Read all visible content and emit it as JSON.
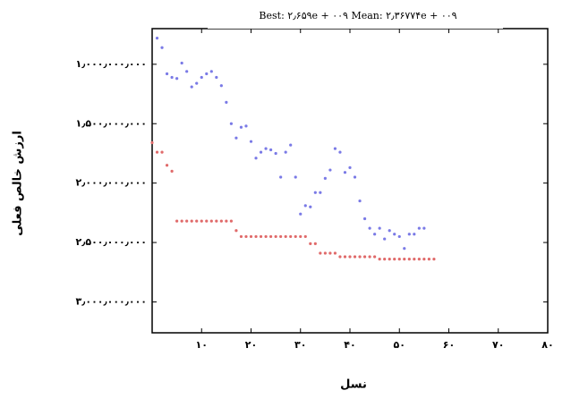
{
  "chart_data": {
    "type": "scatter",
    "title": "Best: ۲٫۶۵۹e + ۰۰۹ Mean: ۲٫۳۶۷۷۴e + ۰۰۹",
    "x_label": "نسل",
    "y_label": "ارزش خالص فعلی",
    "xlim": [
      0,
      80
    ],
    "ylim": [
      700000000,
      3260000000
    ],
    "y_inverted": true,
    "xticks": [
      {
        "value": 10,
        "label": "۱۰"
      },
      {
        "value": 20,
        "label": "۲۰"
      },
      {
        "value": 30,
        "label": "۳۰"
      },
      {
        "value": 40,
        "label": "۴۰"
      },
      {
        "value": 50,
        "label": "۵۰"
      },
      {
        "value": 60,
        "label": "۶۰"
      },
      {
        "value": 70,
        "label": "۷۰"
      },
      {
        "value": 80,
        "label": "۸۰"
      }
    ],
    "yticks": [
      {
        "value": 1000000000,
        "label": "۱٫۰۰۰٫۰۰۰٫۰۰۰"
      },
      {
        "value": 1500000000,
        "label": "۱٫۵۰۰٫۰۰۰٫۰۰۰"
      },
      {
        "value": 2000000000,
        "label": "۲٫۰۰۰٫۰۰۰٫۰۰۰"
      },
      {
        "value": 2500000000,
        "label": "۲٫۵۰۰٫۰۰۰٫۰۰۰"
      },
      {
        "value": 3000000000,
        "label": "۳٫۰۰۰٫۰۰۰٫۰۰۰"
      }
    ],
    "grid": false,
    "series": [
      {
        "color": "#7a7ae6",
        "x": [
          1,
          2,
          3,
          4,
          5,
          6,
          7,
          8,
          9,
          10,
          11,
          12,
          13,
          14,
          15,
          16,
          17,
          18,
          19,
          20,
          21,
          22,
          23,
          24,
          25,
          26,
          27,
          28,
          29,
          30,
          31,
          32,
          33,
          34,
          35,
          36,
          37,
          38,
          39,
          40,
          41,
          42,
          43,
          44,
          45,
          46,
          47,
          48,
          49,
          50,
          51,
          52,
          53,
          54,
          55
        ],
        "values": [
          780000000,
          860000000,
          1080000000,
          1110000000,
          1120000000,
          990000000,
          1060000000,
          1190000000,
          1160000000,
          1110000000,
          1080000000,
          1060000000,
          1110000000,
          1180000000,
          1320000000,
          1500000000,
          1620000000,
          1530000000,
          1520000000,
          1650000000,
          1790000000,
          1740000000,
          1710000000,
          1720000000,
          1750000000,
          1950000000,
          1740000000,
          1680000000,
          1950000000,
          2260000000,
          2190000000,
          2200000000,
          2080000000,
          2080000000,
          1960000000,
          1890000000,
          1710000000,
          1740000000,
          1910000000,
          1870000000,
          1950000000,
          2150000000,
          2300000000,
          2380000000,
          2430000000,
          2380000000,
          2470000000,
          2400000000,
          2430000000,
          2450000000,
          2550000000,
          2430000000,
          2430000000,
          2380000000,
          2380000000
        ]
      },
      {
        "color": "#e06a6a",
        "x": [
          0,
          1,
          2,
          3,
          4,
          5,
          6,
          7,
          8,
          9,
          10,
          11,
          12,
          13,
          14,
          15,
          16,
          17,
          18,
          19,
          20,
          21,
          22,
          23,
          24,
          25,
          26,
          27,
          28,
          29,
          30,
          31,
          32,
          33,
          34,
          35,
          36,
          37,
          38,
          39,
          40,
          41,
          42,
          43,
          44,
          45,
          46,
          47,
          48,
          49,
          50,
          51,
          52,
          53,
          54,
          55,
          56,
          57
        ],
        "values": [
          1660000000,
          1740000000,
          1740000000,
          1850000000,
          1900000000,
          2320000000,
          2320000000,
          2320000000,
          2320000000,
          2320000000,
          2320000000,
          2320000000,
          2320000000,
          2320000000,
          2320000000,
          2320000000,
          2320000000,
          2400000000,
          2450000000,
          2450000000,
          2450000000,
          2450000000,
          2450000000,
          2450000000,
          2450000000,
          2450000000,
          2450000000,
          2450000000,
          2450000000,
          2450000000,
          2450000000,
          2450000000,
          2510000000,
          2510000000,
          2590000000,
          2590000000,
          2590000000,
          2590000000,
          2620000000,
          2620000000,
          2620000000,
          2620000000,
          2620000000,
          2620000000,
          2620000000,
          2620000000,
          2640000000,
          2640000000,
          2640000000,
          2640000000,
          2640000000,
          2640000000,
          2640000000,
          2640000000,
          2640000000,
          2640000000,
          2640000000,
          2640000000
        ]
      }
    ]
  }
}
